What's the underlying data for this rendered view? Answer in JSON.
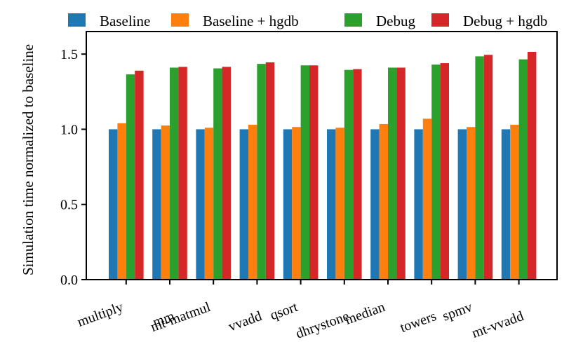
{
  "chart_data": {
    "type": "bar",
    "title": "",
    "xlabel": "",
    "ylabel": "Simulation time normalized to baseline",
    "ylim": [
      0,
      1.65
    ],
    "yticks": [
      0.0,
      0.5,
      1.0,
      1.5
    ],
    "ytick_labels": [
      "0.0",
      "0.5",
      "1.0",
      "1.5"
    ],
    "grid": false,
    "legend_position": "top",
    "categories": [
      "multiply",
      "mm",
      "mt-matmul",
      "vvadd",
      "qsort",
      "dhrystone",
      "median",
      "towers",
      "spmv",
      "mt-vvadd"
    ],
    "series": [
      {
        "name": "Baseline",
        "color": "#1f77b4",
        "values": [
          1.0,
          1.0,
          1.0,
          1.0,
          1.0,
          1.0,
          1.0,
          1.0,
          1.0,
          1.0
        ]
      },
      {
        "name": "Baseline + hgdb",
        "color": "#ff7f0e",
        "values": [
          1.04,
          1.025,
          1.01,
          1.03,
          1.015,
          1.01,
          1.035,
          1.07,
          1.015,
          1.03
        ]
      },
      {
        "name": "Debug",
        "color": "#2ca02c",
        "values": [
          1.365,
          1.41,
          1.405,
          1.435,
          1.425,
          1.395,
          1.41,
          1.43,
          1.485,
          1.465
        ]
      },
      {
        "name": "Debug + hgdb",
        "color": "#d62728",
        "values": [
          1.39,
          1.415,
          1.415,
          1.445,
          1.425,
          1.4,
          1.41,
          1.44,
          1.495,
          1.515
        ]
      }
    ]
  }
}
